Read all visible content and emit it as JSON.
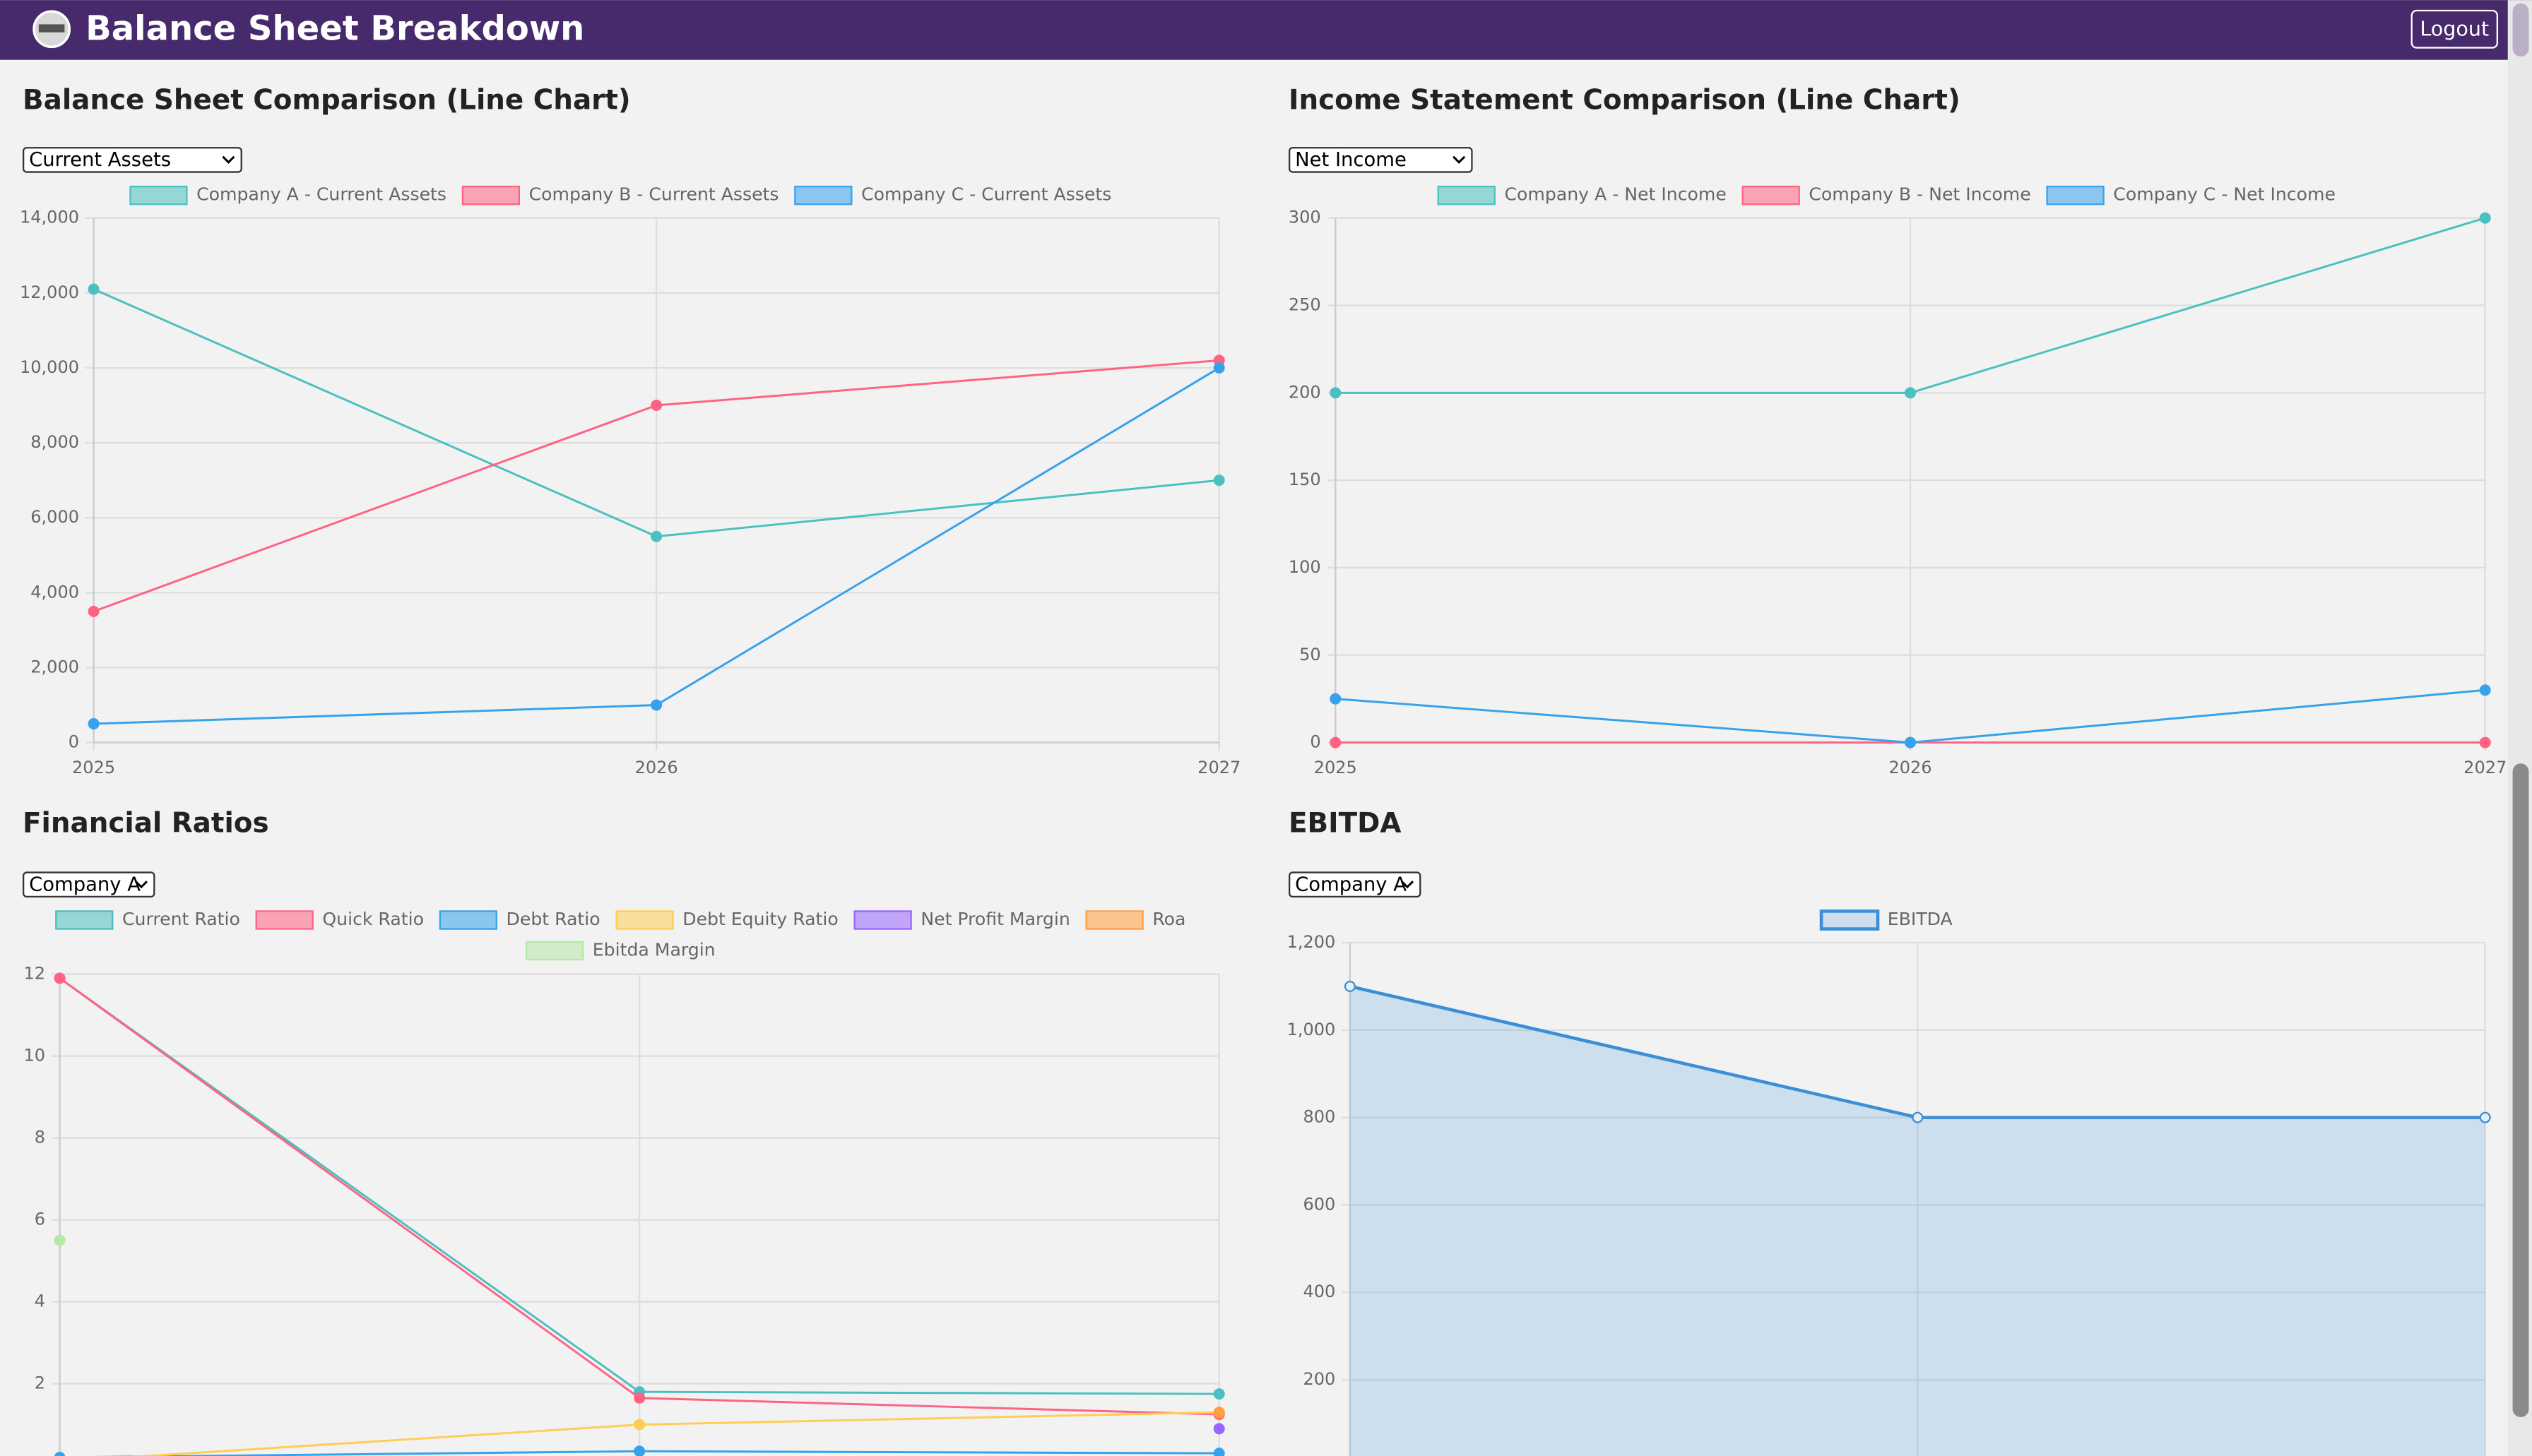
{
  "header": {
    "title": "Balance Sheet Breakdown",
    "logout": "Logout"
  },
  "chart_data": [
    {
      "type": "line",
      "title": "Balance Sheet Comparison (Line Chart)",
      "filter": "Current Assets",
      "categories": [
        "2025",
        "2026",
        "2027"
      ],
      "series": [
        {
          "name": "Company A - Current Assets",
          "color": "#4bc0c0",
          "values": [
            12100,
            5500,
            7000
          ]
        },
        {
          "name": "Company B - Current Assets",
          "color": "#ff6384",
          "values": [
            3500,
            9000,
            10200
          ]
        },
        {
          "name": "Company C - Current Assets",
          "color": "#36a2eb",
          "values": [
            500,
            1000,
            10000
          ]
        }
      ],
      "ylim": [
        0,
        14000
      ],
      "yticks": [
        0,
        {
          "value": 2000,
          "label": "2,000"
        },
        {
          "value": 4000,
          "label": "4,000"
        },
        {
          "value": 6000,
          "label": "6,000"
        },
        {
          "value": 8000,
          "label": "8,000"
        },
        {
          "value": 10000,
          "label": "10,000"
        },
        {
          "value": 12000,
          "label": "12,000"
        },
        {
          "value": 14000,
          "label": "14,000"
        }
      ],
      "grid": true,
      "legend": "top"
    },
    {
      "type": "line",
      "title": "Income Statement Comparison (Line Chart)",
      "filter": "Net Income",
      "categories": [
        "2025",
        "2026",
        "2027"
      ],
      "series": [
        {
          "name": "Company A - Net Income",
          "color": "#4bc0c0",
          "values": [
            200,
            200,
            300
          ]
        },
        {
          "name": "Company B - Net Income",
          "color": "#ff6384",
          "values": [
            0,
            0,
            0
          ]
        },
        {
          "name": "Company C - Net Income",
          "color": "#36a2eb",
          "values": [
            25,
            0,
            30
          ]
        }
      ],
      "ylim": [
        0,
        300
      ],
      "yticks": [
        0,
        50,
        100,
        150,
        200,
        250,
        300
      ],
      "grid": true,
      "legend": "top"
    },
    {
      "type": "line",
      "title": "Financial Ratios",
      "filter": "Company A",
      "categories": [
        null,
        null,
        null
      ],
      "series": [
        {
          "name": "Current Ratio",
          "color": "#4bc0c0",
          "values": [
            11.9,
            1.8,
            1.75
          ]
        },
        {
          "name": "Quick Ratio",
          "color": "#ff6384",
          "values": [
            11.9,
            1.65,
            1.25
          ]
        },
        {
          "name": "Debt Ratio",
          "color": "#36a2eb",
          "values": [
            0.2,
            0.35,
            0.3
          ]
        },
        {
          "name": "Debt Equity Ratio",
          "color": "#ffcd56",
          "values": [
            0.1,
            1.0,
            1.3
          ]
        },
        {
          "name": "Net Profit Margin",
          "color": "#9966ff",
          "values": [
            null,
            null,
            0.9
          ]
        },
        {
          "name": "Roa",
          "color": "#ff9f40",
          "values": [
            null,
            null,
            1.3
          ]
        },
        {
          "name": "Ebitda Margin",
          "color": "#b5e8a6",
          "values": [
            5.5,
            null,
            null
          ]
        }
      ],
      "ylim": [
        0,
        12
      ],
      "yticks": [
        2,
        4,
        6,
        8,
        10,
        12
      ],
      "grid": true,
      "legend": "top"
    },
    {
      "type": "area",
      "title": "EBITDA",
      "filter": "Company A",
      "categories": [
        null,
        null,
        null
      ],
      "series": [
        {
          "name": "EBITDA",
          "color": "#3a8fd6",
          "values": [
            1100,
            800,
            800
          ]
        }
      ],
      "ylim": [
        0,
        1200
      ],
      "yticks": [
        200,
        400,
        600,
        800,
        {
          "value": 1000,
          "label": "1,000"
        },
        {
          "value": 1200,
          "label": "1,200"
        }
      ],
      "grid": true,
      "legend": "top"
    }
  ]
}
